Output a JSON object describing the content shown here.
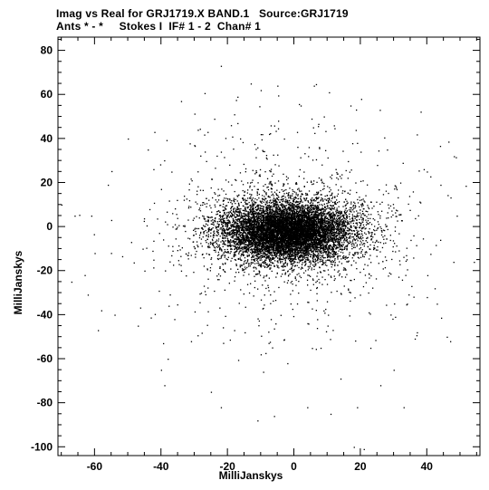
{
  "header": {
    "line1": "Imag vs Real for GRJ1719.X BAND.1   Source:GRJ1719",
    "line2": "Ants * - *     Stokes I  IF# 1 - 2  Chan# 1"
  },
  "chart_data": {
    "type": "scatter",
    "title": "Imag vs Real for GRJ1719.X BAND.1   Source:GRJ1719",
    "subtitle": "Ants * - *     Stokes I  IF# 1 - 2  Chan# 1",
    "xlabel": "MilliJanskys",
    "ylabel": "MilliJanskys",
    "xlim": [
      -71,
      56
    ],
    "ylim": [
      -104,
      86
    ],
    "xticks": [
      -60,
      -40,
      -20,
      0,
      20,
      40
    ],
    "yticks": [
      -100,
      -80,
      -60,
      -40,
      -20,
      0,
      20,
      40,
      60,
      80
    ],
    "grid": false,
    "marker_color": "#000000",
    "series": [
      {
        "distribution": "dense elliptical cloud centered near origin",
        "center": [
          -2,
          -2
        ],
        "core_sigma": [
          9,
          6
        ],
        "halo_sigma": [
          20,
          25
        ],
        "points": [
          [
            -22,
            73
          ],
          [
            -13,
            65
          ],
          [
            -10,
            62
          ],
          [
            -17,
            59
          ],
          [
            -5,
            64
          ],
          [
            -34,
            57
          ],
          [
            -18,
            51
          ],
          [
            -24,
            49
          ],
          [
            -26,
            43
          ],
          [
            -17,
            47
          ],
          [
            -7,
            46
          ],
          [
            2,
            55
          ],
          [
            9,
            50
          ],
          [
            -42,
            43
          ],
          [
            -50,
            40
          ],
          [
            -61,
            5
          ],
          [
            -66,
            5
          ],
          [
            -67,
            -25
          ],
          [
            -63,
            -22
          ],
          [
            -54,
            -40
          ],
          [
            -58,
            -38
          ],
          [
            -47,
            -45
          ],
          [
            -59,
            -47
          ],
          [
            -38,
            -60
          ],
          [
            -40,
            -65
          ],
          [
            -39,
            -72
          ],
          [
            -25,
            -75
          ],
          [
            -22,
            -82
          ],
          [
            -11,
            -88
          ],
          [
            -6,
            -86
          ],
          [
            4,
            -82
          ],
          [
            11,
            -85
          ],
          [
            18,
            -100
          ],
          [
            21,
            -101
          ],
          [
            19,
            -82
          ],
          [
            33,
            -82
          ],
          [
            26,
            -72
          ],
          [
            23,
            -55
          ],
          [
            47,
            -52
          ],
          [
            40,
            -32
          ],
          [
            34,
            -35
          ],
          [
            43,
            -35
          ],
          [
            46,
            -50
          ],
          [
            49,
            5
          ],
          [
            48,
            -16
          ],
          [
            40,
            25
          ],
          [
            28,
            35
          ],
          [
            19,
            38
          ],
          [
            17,
            55
          ],
          [
            6,
            64
          ],
          [
            -10,
            42
          ],
          [
            -30,
            37
          ],
          [
            -44,
            35
          ],
          [
            -56,
            19
          ],
          [
            -70,
            10
          ],
          [
            -55,
            3
          ],
          [
            -49,
            -7
          ],
          [
            -60,
            -12
          ],
          [
            -45,
            -20
          ],
          [
            -34,
            -20
          ],
          [
            -28,
            -30
          ],
          [
            -36,
            -42
          ],
          [
            -31,
            -52
          ],
          [
            -18,
            -47
          ],
          [
            -10,
            -58
          ],
          [
            -2,
            -62
          ],
          [
            8,
            -55
          ],
          [
            14,
            -69
          ],
          [
            30,
            -65
          ],
          [
            37,
            -48
          ],
          [
            44,
            -6
          ],
          [
            38,
            11
          ],
          [
            32,
            20
          ],
          [
            25,
            28
          ],
          [
            12,
            46
          ],
          [
            -3,
            40
          ],
          [
            -22,
            34
          ]
        ]
      }
    ]
  }
}
